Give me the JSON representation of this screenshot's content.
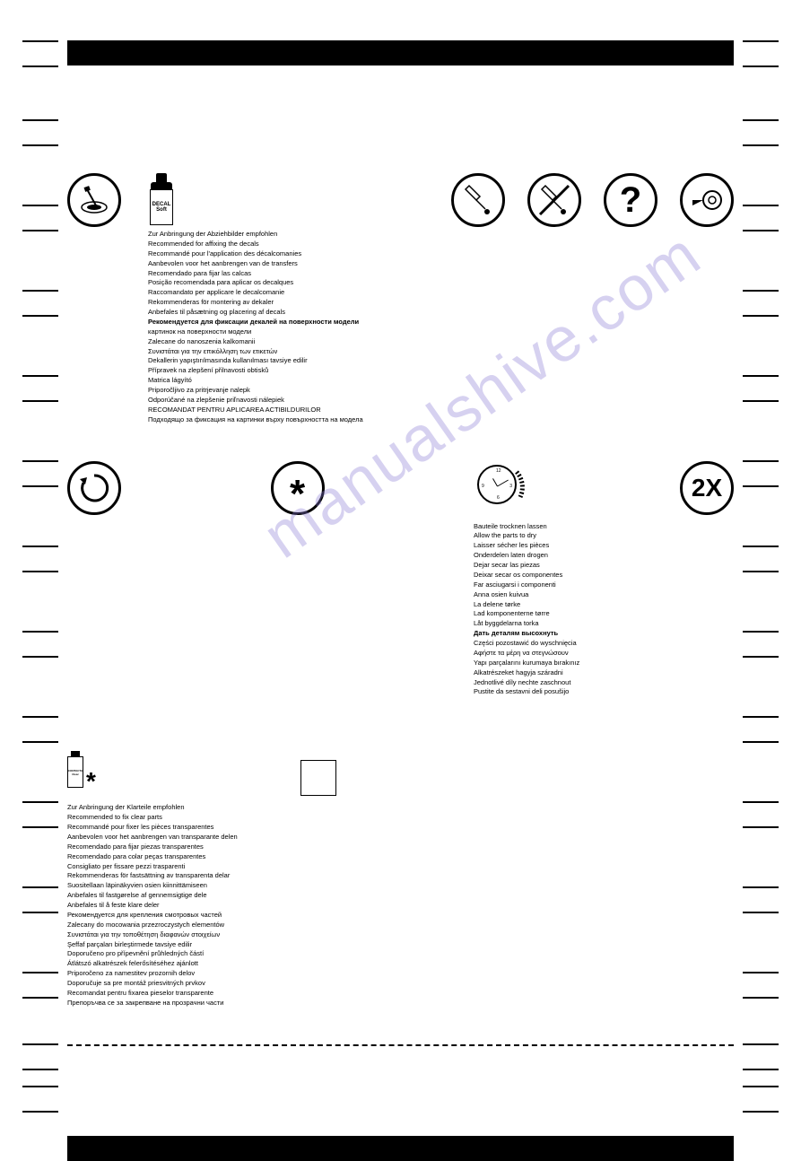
{
  "watermark": "manualshive.com",
  "decal_soft": {
    "label_line1": "DECAL",
    "label_line2": "Soft",
    "instructions": [
      "Zur Anbringung der Abziehbilder empfohlen",
      "Recommended for affixing the decals",
      "Recommandé pour l'application des décalcomanies",
      "Aanbevolen voor het aanbrengen van de transfers",
      "Recomendado para fijar las calcas",
      "Posição recomendada para aplicar os decalques",
      "Raccomandato per applicare le decalcomanie",
      "Rekommenderas för montering av dekaler",
      "Anbefales til påsætning og placering af decals",
      "Рекомендуется для фиксации декалей на поверхности модели",
      "картинок на поверхности модели",
      "Zalecane do nanoszenia kalkomanii",
      "Συνιστάται για την επικόλληση των ετικετών",
      "Dekallerin yapıştırılmasında kullanılması tavsiye edilir",
      "Přípravek na zlepšení přilnavosti obtisků",
      "Matrica lágyító",
      "Priporočljivo za pritrjevanje nalepk",
      "Odporúčané na zlepšenie priľnavosti nálepiek",
      "RECOMANDAT PENTRU APLICAREA ACTIBILDURILOR",
      "Подходящо за фиксация на картинки върху повърхността на модела"
    ],
    "bold_indices": [
      9
    ]
  },
  "clock": {
    "instructions": [
      "Bauteile trocknen lassen",
      "Allow the parts to dry",
      "Laisser sécher les pièces",
      "Onderdelen laten drogen",
      "Dejar secar las piezas",
      "Deixar secar os componentes",
      "Far asciugarsi i componenti",
      "Anna osien kuivua",
      "La delene tørke",
      "Lad komponenterne tørre",
      "Låt byggdelarna torka",
      "Дать деталям высохнуть",
      "Części pozostawić do wyschnięcia",
      "Αφήστε τα μέρη να στεγνώσουν",
      "Yapı parçalarını kurumaya bırakınız",
      "Alkatrészeket hagyja száradni",
      "Jednotlivé díly nechte zaschnout",
      "Pustite da sestavni deli posušijo"
    ],
    "bold_indices": [
      11
    ]
  },
  "contacta": {
    "label_line1": "CONTACTA",
    "label_line2": "Clear",
    "asterisk": "*",
    "instructions": [
      "Zur Anbringung der Klarteile empfohlen",
      "Recommended to fix clear parts",
      "Recommandé pour fixer les pièces transparentes",
      "Aanbevolen voor het aanbrengen van transparante delen",
      "Recomendado para fijar piezas transparentes",
      "Recomendado para colar peças transparentes",
      "Consigliato per fissare pezzi trasparenti",
      "Rekommenderas för fastsättning av transparenta delar",
      "Suositellaan läpinäkyvien osien kiinnittämiseen",
      "Anbefales til fastgørelse af gennemsigtige dele",
      "Anbefales til å feste klare deler",
      "Рекомендуется для крепления смотровых частей",
      "Zalecany do mocowania przezroczystych elementów",
      "Συνιστάται για την τοποθέτηση διαφανών στοιχείων",
      "Şeffaf parçaları birleştirmede tavsiye edilir",
      "Doporučeno pro přípevnění průhledných částí",
      "Átlátszó alkatrészek felerősítéséhez ajánlott",
      "Priporočeno za namestitev prozornih delov",
      "Doporučuje sa pre montáž priesvitných prvkov",
      "Recomandat pentru fixarea pieselor transparente",
      "Препоръчва се за закрепване на прозрачни части"
    ],
    "bold_indices": []
  },
  "icons": {
    "two_x": "2X",
    "question": "?",
    "asterisk_center": "*"
  },
  "tick_positions": [
    45,
    73,
    133,
    161,
    228,
    256,
    323,
    351,
    418,
    446,
    513,
    541,
    608,
    636,
    703,
    731,
    798,
    826,
    893,
    921,
    988,
    1016,
    1083,
    1111,
    1163,
    1191,
    1210,
    1238
  ]
}
